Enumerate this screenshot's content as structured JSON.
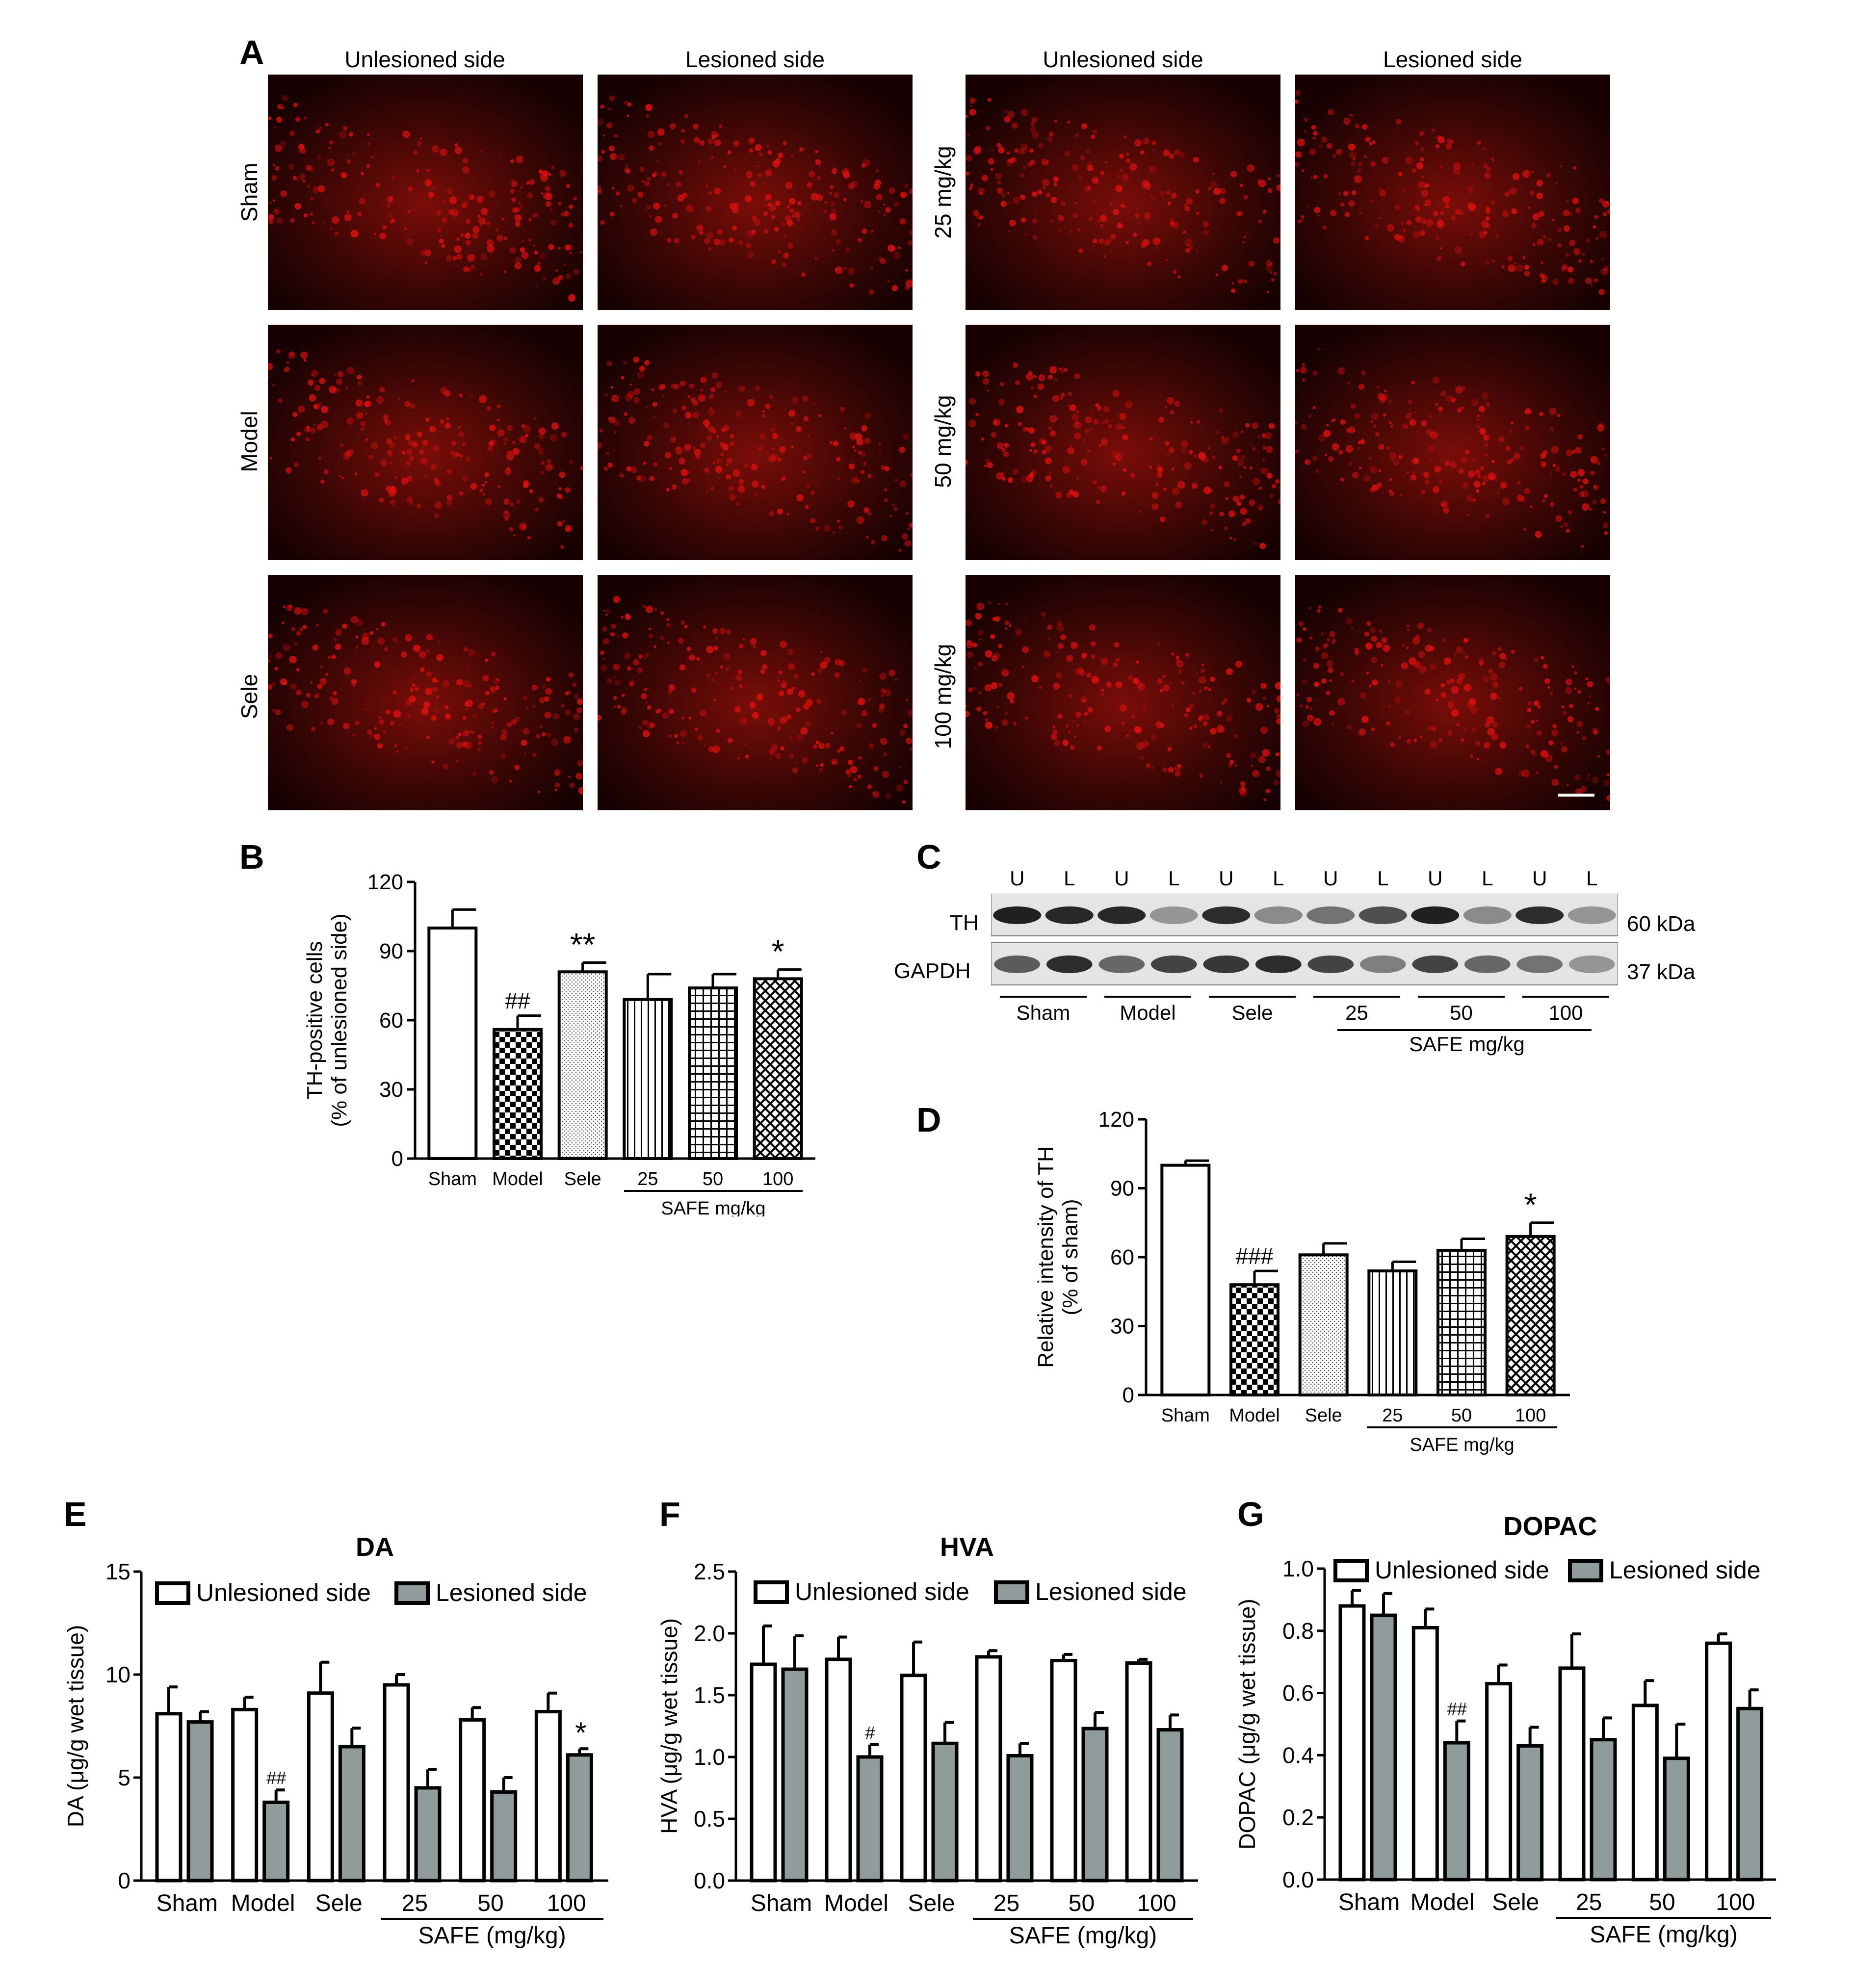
{
  "panels": {
    "A": "A",
    "B": "B",
    "C": "C",
    "D": "D",
    "E": "E",
    "F": "F",
    "G": "G"
  },
  "panelA": {
    "columns": [
      "Unlesioned side",
      "Lesioned side",
      "Unlesioned side",
      "Lesioned side"
    ],
    "rows_left": [
      "Sham",
      "Model",
      "Sele"
    ],
    "rows_right": [
      "25 mg/kg",
      "50 mg/kg",
      "100 mg/kg"
    ],
    "stain_color": "#e01010"
  },
  "panelC": {
    "lanes": [
      "U",
      "L",
      "U",
      "L",
      "U",
      "L",
      "U",
      "L",
      "U",
      "L",
      "U",
      "L"
    ],
    "bands": [
      "TH",
      "GAPDH"
    ],
    "sizes": [
      "60 kDa",
      "37 kDa"
    ],
    "groups": [
      "Sham",
      "Model",
      "Sele",
      "25",
      "50",
      "100"
    ],
    "treatment_label": "SAFE mg/kg",
    "th_intensity": [
      0.95,
      0.92,
      0.92,
      0.45,
      0.9,
      0.5,
      0.6,
      0.75,
      0.95,
      0.5,
      0.9,
      0.45
    ],
    "gapdh_intensity": [
      0.7,
      0.9,
      0.65,
      0.8,
      0.85,
      0.9,
      0.8,
      0.55,
      0.8,
      0.65,
      0.6,
      0.45
    ]
  },
  "chart_data": [
    {
      "id": "B",
      "type": "bar",
      "categories": [
        "Sham",
        "Model",
        "Sele",
        "25",
        "50",
        "100"
      ],
      "values": [
        100,
        56,
        81,
        69,
        74,
        78
      ],
      "errors": [
        8,
        6,
        4,
        11,
        6,
        4
      ],
      "annotations": [
        "",
        "##",
        "**",
        "",
        "",
        "*"
      ],
      "patterns": [
        "white",
        "checker",
        "dots",
        "vlines",
        "grid",
        "crosshatch"
      ],
      "ylabel": [
        "TH-positive cells",
        "(% of unlesioned side)"
      ],
      "yticks": [
        0,
        30,
        60,
        90,
        120
      ],
      "ylim": [
        0,
        120
      ],
      "group_label": "SAFE mg/kg",
      "grid": false
    },
    {
      "id": "D",
      "type": "bar",
      "categories": [
        "Sham",
        "Model",
        "Sele",
        "25",
        "50",
        "100"
      ],
      "values": [
        100,
        48,
        61,
        54,
        63,
        69
      ],
      "errors": [
        2,
        6,
        5,
        4,
        5,
        6
      ],
      "annotations": [
        "",
        "###",
        "",
        "",
        "",
        "*"
      ],
      "patterns": [
        "white",
        "checker",
        "dots",
        "vlines",
        "grid",
        "crosshatch"
      ],
      "ylabel": [
        "Relative intensity of TH",
        "(% of sham)"
      ],
      "yticks": [
        0,
        30,
        60,
        90,
        120
      ],
      "ylim": [
        0,
        120
      ],
      "group_label": "SAFE mg/kg",
      "grid": false
    },
    {
      "id": "E",
      "type": "bar",
      "title": "DA",
      "categories": [
        "Sham",
        "Model",
        "Sele",
        "25",
        "50",
        "100"
      ],
      "series": [
        {
          "name": "Unlesioned side",
          "values": [
            8.1,
            8.3,
            9.1,
            9.5,
            7.8,
            8.2
          ],
          "errors": [
            1.3,
            0.6,
            1.5,
            0.5,
            0.6,
            0.9
          ],
          "color": "#ffffff"
        },
        {
          "name": "Lesioned side",
          "values": [
            7.7,
            3.8,
            6.5,
            4.5,
            4.3,
            6.1
          ],
          "errors": [
            0.5,
            0.6,
            0.9,
            0.9,
            0.7,
            0.3
          ],
          "color": "#8f9c9c"
        }
      ],
      "annotations": [
        [
          "",
          ""
        ],
        [
          "",
          "##"
        ],
        [
          "",
          ""
        ],
        [
          "",
          ""
        ],
        [
          "",
          ""
        ],
        [
          "",
          "*"
        ]
      ],
      "ylabel": "DA (μg/g wet tissue)",
      "yticks": [
        "0",
        "5",
        "10",
        "15"
      ],
      "ylim": [
        0,
        15
      ],
      "group_label": "SAFE (mg/kg)",
      "legend": "top",
      "grid": false
    },
    {
      "id": "F",
      "type": "bar",
      "title": "HVA",
      "categories": [
        "Sham",
        "Model",
        "Sele",
        "25",
        "50",
        "100"
      ],
      "series": [
        {
          "name": "Unlesioned side",
          "values": [
            1.75,
            1.79,
            1.66,
            1.81,
            1.78,
            1.76
          ],
          "errors": [
            0.31,
            0.18,
            0.27,
            0.05,
            0.05,
            0.03
          ],
          "color": "#ffffff"
        },
        {
          "name": "Lesioned side",
          "values": [
            1.71,
            1.0,
            1.11,
            1.01,
            1.23,
            1.22
          ],
          "errors": [
            0.27,
            0.1,
            0.17,
            0.1,
            0.13,
            0.12
          ],
          "color": "#8f9c9c"
        }
      ],
      "annotations": [
        [
          "",
          ""
        ],
        [
          "",
          "#"
        ],
        [
          "",
          ""
        ],
        [
          "",
          ""
        ],
        [
          "",
          ""
        ],
        [
          "",
          ""
        ]
      ],
      "ylabel": "HVA (μg/g wet tissue)",
      "yticks": [
        "0.0",
        "0.5",
        "1.0",
        "1.5",
        "2.0",
        "2.5"
      ],
      "ylim": [
        0,
        2.5
      ],
      "group_label": "SAFE (mg/kg)",
      "legend": "top",
      "grid": false
    },
    {
      "id": "G",
      "type": "bar",
      "title": "DOPAC",
      "categories": [
        "Sham",
        "Model",
        "Sele",
        "25",
        "50",
        "100"
      ],
      "series": [
        {
          "name": "Unlesioned side",
          "values": [
            0.88,
            0.81,
            0.63,
            0.68,
            0.56,
            0.76
          ],
          "errors": [
            0.05,
            0.06,
            0.06,
            0.11,
            0.08,
            0.03
          ],
          "color": "#ffffff"
        },
        {
          "name": "Lesioned side",
          "values": [
            0.85,
            0.44,
            0.43,
            0.45,
            0.39,
            0.55
          ],
          "errors": [
            0.07,
            0.07,
            0.06,
            0.07,
            0.11,
            0.06
          ],
          "color": "#8f9c9c"
        }
      ],
      "annotations": [
        [
          "",
          ""
        ],
        [
          "",
          "##"
        ],
        [
          "",
          ""
        ],
        [
          "",
          ""
        ],
        [
          "",
          ""
        ],
        [
          "",
          ""
        ]
      ],
      "ylabel": "DOPAC (μg/g wet tissue)",
      "yticks": [
        "0.0",
        "0.2",
        "0.4",
        "0.6",
        "0.8",
        "1.0"
      ],
      "ylim": [
        0,
        1.0
      ],
      "group_label": "SAFE (mg/kg)",
      "legend": "top",
      "grid": false
    }
  ]
}
